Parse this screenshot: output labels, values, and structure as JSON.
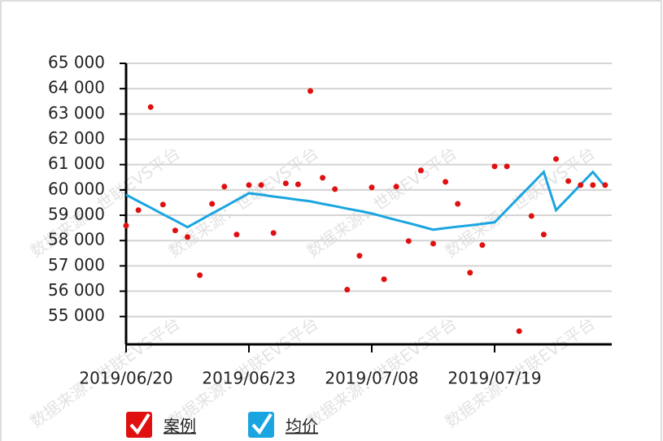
{
  "chart_data": {
    "type": "scatter",
    "categories": [
      "2019/06/20",
      null,
      null,
      null,
      null,
      null,
      null,
      null,
      null,
      null,
      "2019/06/23",
      null,
      null,
      null,
      null,
      null,
      null,
      null,
      null,
      null,
      "2019/07/08",
      null,
      null,
      null,
      null,
      null,
      null,
      null,
      null,
      null,
      "2019/07/19",
      null,
      null,
      null,
      null,
      null,
      null,
      null,
      null,
      null
    ],
    "series": [
      {
        "name": "案例",
        "type": "scatter",
        "color": "#e01010",
        "values": [
          58590,
          59200,
          63270,
          59420,
          58400,
          58140,
          56630,
          59450,
          60130,
          58240,
          60190,
          60190,
          58300,
          60260,
          60220,
          63910,
          60480,
          60030,
          56060,
          57400,
          60100,
          56470,
          60130,
          57980,
          60770,
          57880,
          60320,
          59450,
          56730,
          57820,
          60930,
          60930,
          54420,
          58970,
          58240,
          61220,
          60350,
          60190,
          60190,
          60190
        ]
      },
      {
        "name": "均价",
        "type": "line",
        "color": "#1ba5e0",
        "values": [
          59810,
          59550,
          59300,
          59040,
          58790,
          58530,
          58800,
          59070,
          59330,
          59600,
          59870,
          59810,
          59740,
          59680,
          59610,
          59550,
          59450,
          59360,
          59260,
          59170,
          59070,
          58940,
          58810,
          58690,
          58560,
          58430,
          58490,
          58550,
          58600,
          58660,
          58720,
          59220,
          59720,
          60210,
          60710,
          59200,
          59700,
          60210,
          60710,
          60130
        ]
      }
    ],
    "ylim": [
      53900,
      65000
    ],
    "yticks": [
      {
        "value": 55000,
        "label": "55 000"
      },
      {
        "value": 56000,
        "label": "56 000"
      },
      {
        "value": 57000,
        "label": "57 000"
      },
      {
        "value": 58000,
        "label": "58 000"
      },
      {
        "value": 59000,
        "label": "59 000"
      },
      {
        "value": 60000,
        "label": "60 000"
      },
      {
        "value": 61000,
        "label": "61 000"
      },
      {
        "value": 62000,
        "label": "62 000"
      },
      {
        "value": 63000,
        "label": "63 000"
      },
      {
        "value": 64000,
        "label": "64 000"
      },
      {
        "value": 65000,
        "label": "65 000"
      }
    ],
    "grid": true,
    "watermark": "数据来源：世联EVS平台"
  }
}
